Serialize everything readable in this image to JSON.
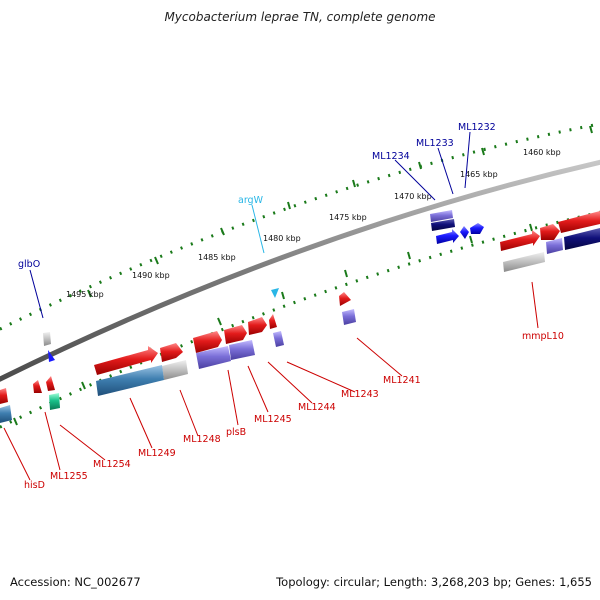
{
  "header": {
    "title": "Mycobacterium leprae TN, complete genome"
  },
  "footer": {
    "accession": "Accession: NC_002677",
    "topology": "Topology: circular; Length: 3,268,203 bp; Genes: 1,655"
  },
  "colors": {
    "backbone": "#7a7a7a",
    "tick": "#1a7a1a",
    "gene_red": "#e31b1b",
    "gene_blue": "#1a1aff",
    "gene_navy": "#10107a",
    "gene_purple": "#7b6fd8",
    "gene_steel": "#3f7fb0",
    "gene_gray": "#b8b8b8",
    "gene_green": "#19c089",
    "label_red": "#cc0000",
    "label_blue": "#00009a",
    "label_cyan": "#29b6e6"
  },
  "scale_labels": [
    "1460 kbp",
    "1465 kbp",
    "1470 kbp",
    "1475 kbp",
    "1480 kbp",
    "1485 kbp",
    "1490 kbp",
    "1495 kbp"
  ],
  "gene_labels_top": [
    "ML1232",
    "ML1233",
    "ML1234",
    "argW",
    "glbO"
  ],
  "gene_labels_bottom": [
    "mmpL10",
    "ML1241",
    "ML1243",
    "ML1244",
    "ML1245",
    "plsB",
    "ML1248",
    "ML1249",
    "ML1254",
    "ML1255",
    "hisD"
  ]
}
